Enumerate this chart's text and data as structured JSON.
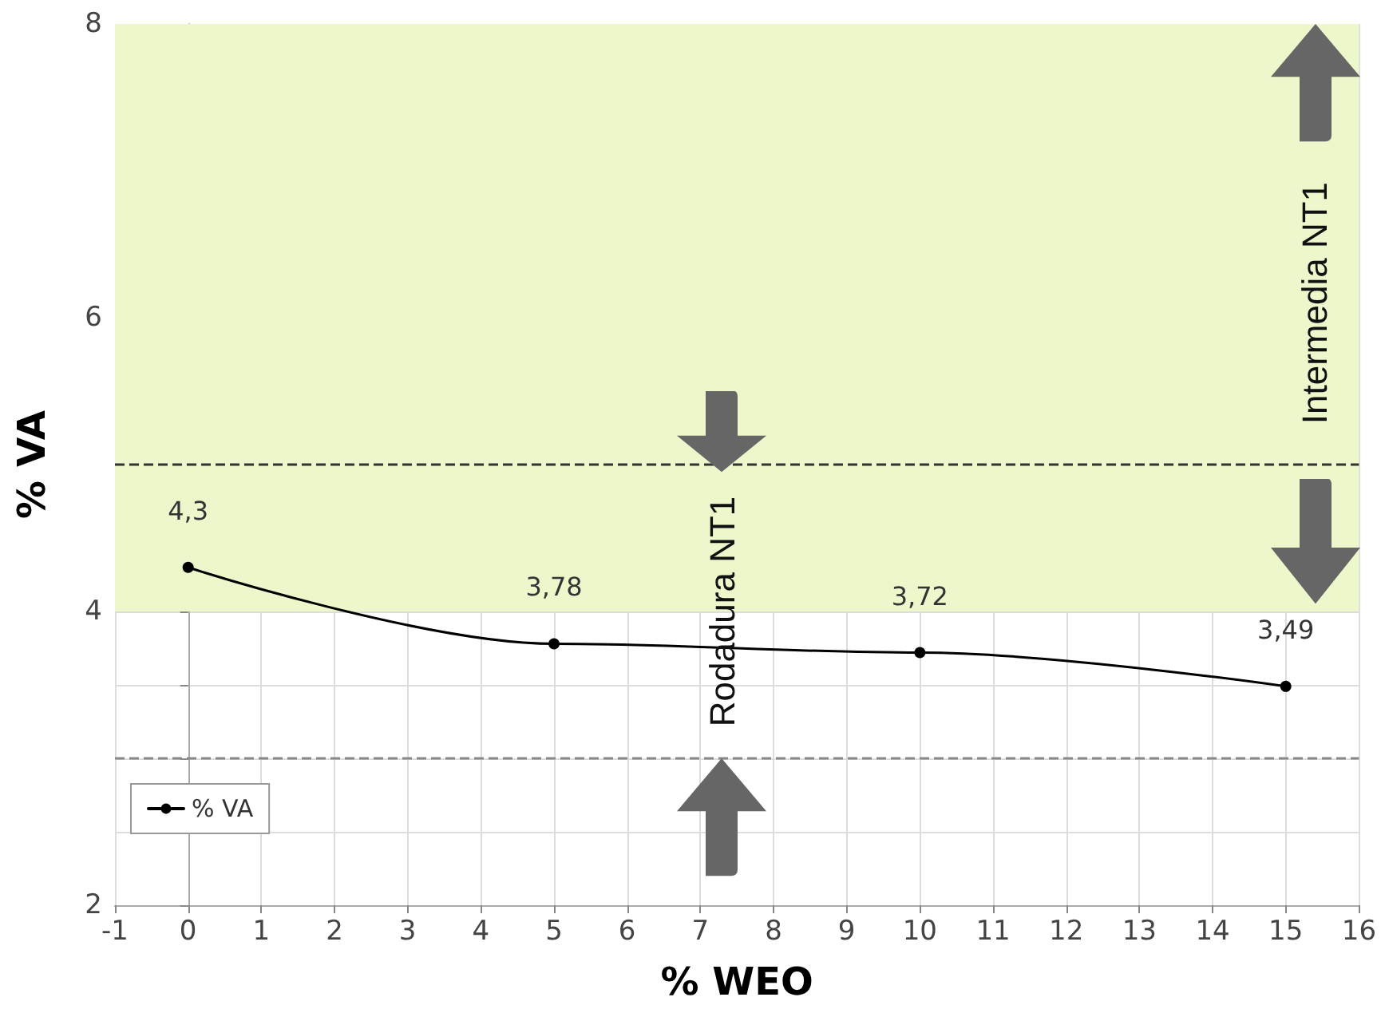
{
  "chart_data": {
    "type": "line",
    "xlabel": "% WEO",
    "ylabel": "% VA",
    "x": [
      0,
      5,
      10,
      15
    ],
    "series": [
      {
        "name": "% VA",
        "color": "#000000",
        "values": [
          4.3,
          3.78,
          3.72,
          3.49
        ],
        "value_labels": [
          "4,3",
          "3,78",
          "3,72",
          "3,49"
        ]
      }
    ],
    "xlim": [
      -1,
      16
    ],
    "xticks": [
      -1,
      0,
      1,
      2,
      3,
      4,
      5,
      6,
      7,
      8,
      9,
      10,
      11,
      12,
      13,
      14,
      15,
      16
    ],
    "ylim": [
      2,
      8
    ],
    "yticks": [
      2,
      {
        "value": 2.5,
        "label": null
      },
      {
        "value": 3,
        "label": null
      },
      {
        "value": 3.5,
        "label": null
      },
      4,
      {
        "value": 4.5,
        "label": null
      },
      {
        "value": 5,
        "label": null
      },
      {
        "value": 5.5,
        "label": null
      },
      6,
      {
        "value": 6.5,
        "label": null
      },
      {
        "value": 7,
        "label": null
      },
      {
        "value": 7.5,
        "label": null
      },
      8
    ],
    "bands": [
      {
        "axis": "y",
        "from": 4,
        "to": 8,
        "color": "#ecf7cc"
      }
    ],
    "ref_lines": [
      {
        "axis": "y",
        "value": 5,
        "color": "#333333",
        "line_style": "dashed"
      },
      {
        "axis": "y",
        "value": 3,
        "color": "#888888",
        "line_style": "dashed"
      }
    ],
    "annotations": [
      "Rodadura NT1",
      "Intermedia NT1"
    ],
    "grid": true,
    "legend": "bottom left",
    "marker": "circle",
    "line_style": "solid"
  }
}
